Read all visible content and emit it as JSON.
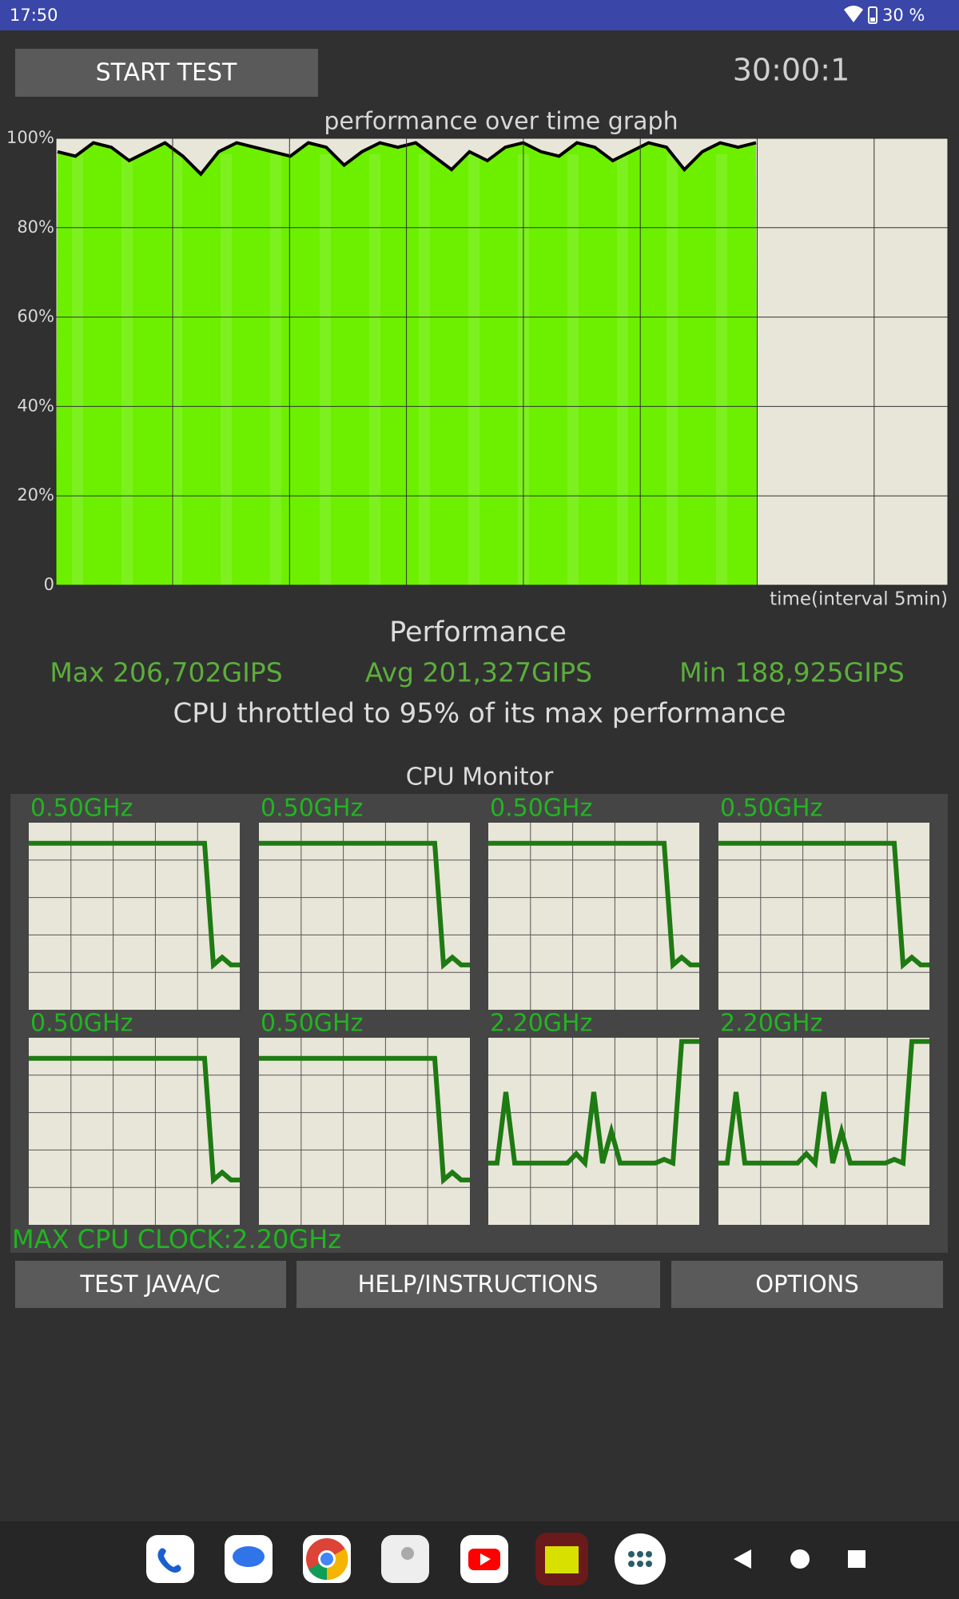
{
  "status_bar": {
    "time": "17:50",
    "battery": "30 %"
  },
  "controls": {
    "start_button": "START TEST",
    "timer": "30:00:1"
  },
  "chart_data": {
    "type": "area",
    "title": "performance over time graph",
    "x_label": "time(interval 5min)",
    "ylim": [
      0,
      100
    ],
    "yticks": [
      0,
      {
        "value": 20,
        "label": "20%"
      },
      {
        "value": 40,
        "label": "40%"
      },
      {
        "value": 60,
        "label": "60%"
      },
      {
        "value": 80,
        "label": "80%"
      },
      {
        "value": 100,
        "label": "100%"
      }
    ],
    "grid": true,
    "series": [
      {
        "color": "#000000",
        "fill": "#6cf000",
        "values": [
          97,
          96,
          99,
          98,
          95,
          97,
          99,
          96,
          92,
          97,
          99,
          98,
          97,
          96,
          99,
          98,
          94,
          97,
          99,
          98,
          99,
          96,
          93,
          97,
          95,
          98,
          99,
          97,
          96,
          99,
          98,
          95,
          97,
          99,
          98,
          93,
          97,
          99,
          98,
          99
        ]
      }
    ]
  },
  "performance": {
    "title": "Performance",
    "max": "Max 206,702GIPS",
    "avg": "Avg 201,327GIPS",
    "min": "Min 188,925GIPS",
    "throttle": "CPU throttled to 95% of its max performance"
  },
  "cpu_monitor": {
    "title": "CPU Monitor",
    "cores": [
      {
        "clock": "0.50GHz",
        "history": [
          0.89,
          0.89,
          0.89,
          0.89,
          0.89,
          0.89,
          0.89,
          0.89,
          0.89,
          0.89,
          0.89,
          0.89,
          0.89,
          0.89,
          0.89,
          0.89,
          0.89,
          0.89,
          0.89,
          0.89,
          0.89,
          0.24,
          0.28,
          0.24,
          0.24
        ]
      },
      {
        "clock": "0.50GHz",
        "history": [
          0.89,
          0.89,
          0.89,
          0.89,
          0.89,
          0.89,
          0.89,
          0.89,
          0.89,
          0.89,
          0.89,
          0.89,
          0.89,
          0.89,
          0.89,
          0.89,
          0.89,
          0.89,
          0.89,
          0.89,
          0.89,
          0.24,
          0.28,
          0.24,
          0.24
        ]
      },
      {
        "clock": "0.50GHz",
        "history": [
          0.89,
          0.89,
          0.89,
          0.89,
          0.89,
          0.89,
          0.89,
          0.89,
          0.89,
          0.89,
          0.89,
          0.89,
          0.89,
          0.89,
          0.89,
          0.89,
          0.89,
          0.89,
          0.89,
          0.89,
          0.89,
          0.24,
          0.28,
          0.24,
          0.24
        ]
      },
      {
        "clock": "0.50GHz",
        "history": [
          0.89,
          0.89,
          0.89,
          0.89,
          0.89,
          0.89,
          0.89,
          0.89,
          0.89,
          0.89,
          0.89,
          0.89,
          0.89,
          0.89,
          0.89,
          0.89,
          0.89,
          0.89,
          0.89,
          0.89,
          0.89,
          0.24,
          0.28,
          0.24,
          0.24
        ]
      },
      {
        "clock": "0.50GHz",
        "history": [
          0.89,
          0.89,
          0.89,
          0.89,
          0.89,
          0.89,
          0.89,
          0.89,
          0.89,
          0.89,
          0.89,
          0.89,
          0.89,
          0.89,
          0.89,
          0.89,
          0.89,
          0.89,
          0.89,
          0.89,
          0.89,
          0.24,
          0.28,
          0.24,
          0.24
        ]
      },
      {
        "clock": "0.50GHz",
        "history": [
          0.89,
          0.89,
          0.89,
          0.89,
          0.89,
          0.89,
          0.89,
          0.89,
          0.89,
          0.89,
          0.89,
          0.89,
          0.89,
          0.89,
          0.89,
          0.89,
          0.89,
          0.89,
          0.89,
          0.89,
          0.89,
          0.24,
          0.28,
          0.24,
          0.24
        ]
      },
      {
        "clock": "2.20GHz",
        "history": [
          0.33,
          0.33,
          0.71,
          0.33,
          0.33,
          0.33,
          0.33,
          0.33,
          0.33,
          0.33,
          0.38,
          0.33,
          0.71,
          0.33,
          0.5,
          0.33,
          0.33,
          0.33,
          0.33,
          0.33,
          0.35,
          0.33,
          0.98,
          0.98,
          0.98
        ]
      },
      {
        "clock": "2.20GHz",
        "history": [
          0.33,
          0.33,
          0.71,
          0.33,
          0.33,
          0.33,
          0.33,
          0.33,
          0.33,
          0.33,
          0.38,
          0.33,
          0.71,
          0.33,
          0.5,
          0.33,
          0.33,
          0.33,
          0.33,
          0.33,
          0.35,
          0.33,
          0.98,
          0.98,
          0.98
        ]
      }
    ],
    "max_clock": "MAX CPU CLOCK:2.20GHz"
  },
  "buttons": [
    "TEST JAVA/C",
    "HELP/INSTRUCTIONS",
    "OPTIONS"
  ]
}
